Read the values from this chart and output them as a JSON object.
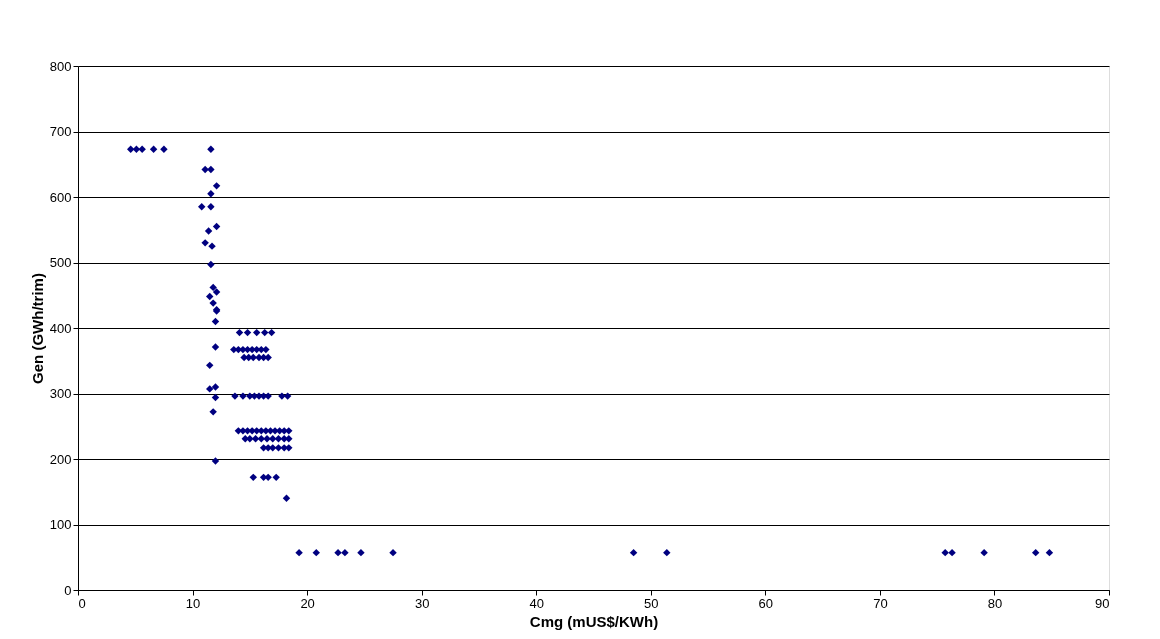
{
  "chart_data": {
    "type": "scatter",
    "xlabel": "Cmg (mUS$/KWh)",
    "ylabel": "Gen  (GWh/trim)",
    "marker": "diamond",
    "grid": "y",
    "xlim": [
      0,
      90
    ],
    "ylim": [
      0,
      800
    ],
    "xticks": [
      0,
      10,
      20,
      30,
      40,
      50,
      60,
      70,
      80,
      90
    ],
    "yticks": [
      0,
      100,
      200,
      300,
      400,
      500,
      600,
      700,
      800
    ],
    "series": [
      {
        "color": "#000080",
        "x": [
          4.6,
          5.1,
          5.6,
          6.6,
          7.5,
          11.6,
          11.1,
          11.6,
          12.1,
          11.6,
          10.8,
          11.6,
          12.1,
          11.4,
          11.1,
          11.7,
          11.6,
          11.8,
          12.1,
          11.5,
          11.8,
          12.1,
          12.1,
          12.0,
          12.0,
          11.5,
          12.0,
          11.5,
          12.0,
          11.8,
          12.0,
          14.1,
          14.8,
          15.6,
          16.3,
          16.9,
          13.6,
          14.0,
          14.4,
          14.8,
          15.2,
          15.6,
          16.0,
          16.4,
          14.5,
          14.9,
          15.3,
          15.8,
          16.2,
          16.6,
          13.7,
          14.4,
          15.0,
          15.4,
          15.8,
          16.2,
          16.6,
          17.8,
          18.3,
          14.0,
          14.4,
          14.8,
          15.2,
          15.6,
          16.0,
          16.4,
          16.8,
          17.2,
          17.6,
          18.0,
          18.4,
          14.6,
          15.0,
          15.5,
          16.0,
          16.5,
          17.0,
          17.5,
          18.0,
          18.4,
          16.2,
          16.6,
          17.0,
          17.5,
          18.0,
          18.4,
          15.3,
          16.2,
          16.6,
          17.3,
          18.2,
          19.3,
          20.8,
          22.7,
          23.3,
          24.7,
          27.5,
          48.5,
          51.4,
          75.7,
          76.3,
          79.1,
          83.6,
          84.8
        ],
        "values": [
          673,
          673,
          673,
          673,
          673,
          673,
          642,
          642,
          617,
          605,
          585,
          585,
          555,
          548,
          530,
          525,
          497,
          462,
          455,
          448,
          438,
          428,
          426,
          410,
          371,
          343,
          310,
          307,
          294,
          272,
          197,
          393,
          393,
          393,
          393,
          393,
          367,
          367,
          367,
          367,
          367,
          367,
          367,
          367,
          355,
          355,
          355,
          355,
          355,
          355,
          296,
          296,
          296,
          296,
          296,
          296,
          296,
          296,
          296,
          243,
          243,
          243,
          243,
          243,
          243,
          243,
          243,
          243,
          243,
          243,
          243,
          231,
          231,
          231,
          231,
          231,
          231,
          231,
          231,
          231,
          217,
          217,
          217,
          217,
          217,
          217,
          172,
          172,
          172,
          172,
          140,
          57,
          57,
          57,
          57,
          57,
          57,
          57,
          57,
          57,
          57,
          57,
          57,
          57
        ]
      }
    ]
  }
}
